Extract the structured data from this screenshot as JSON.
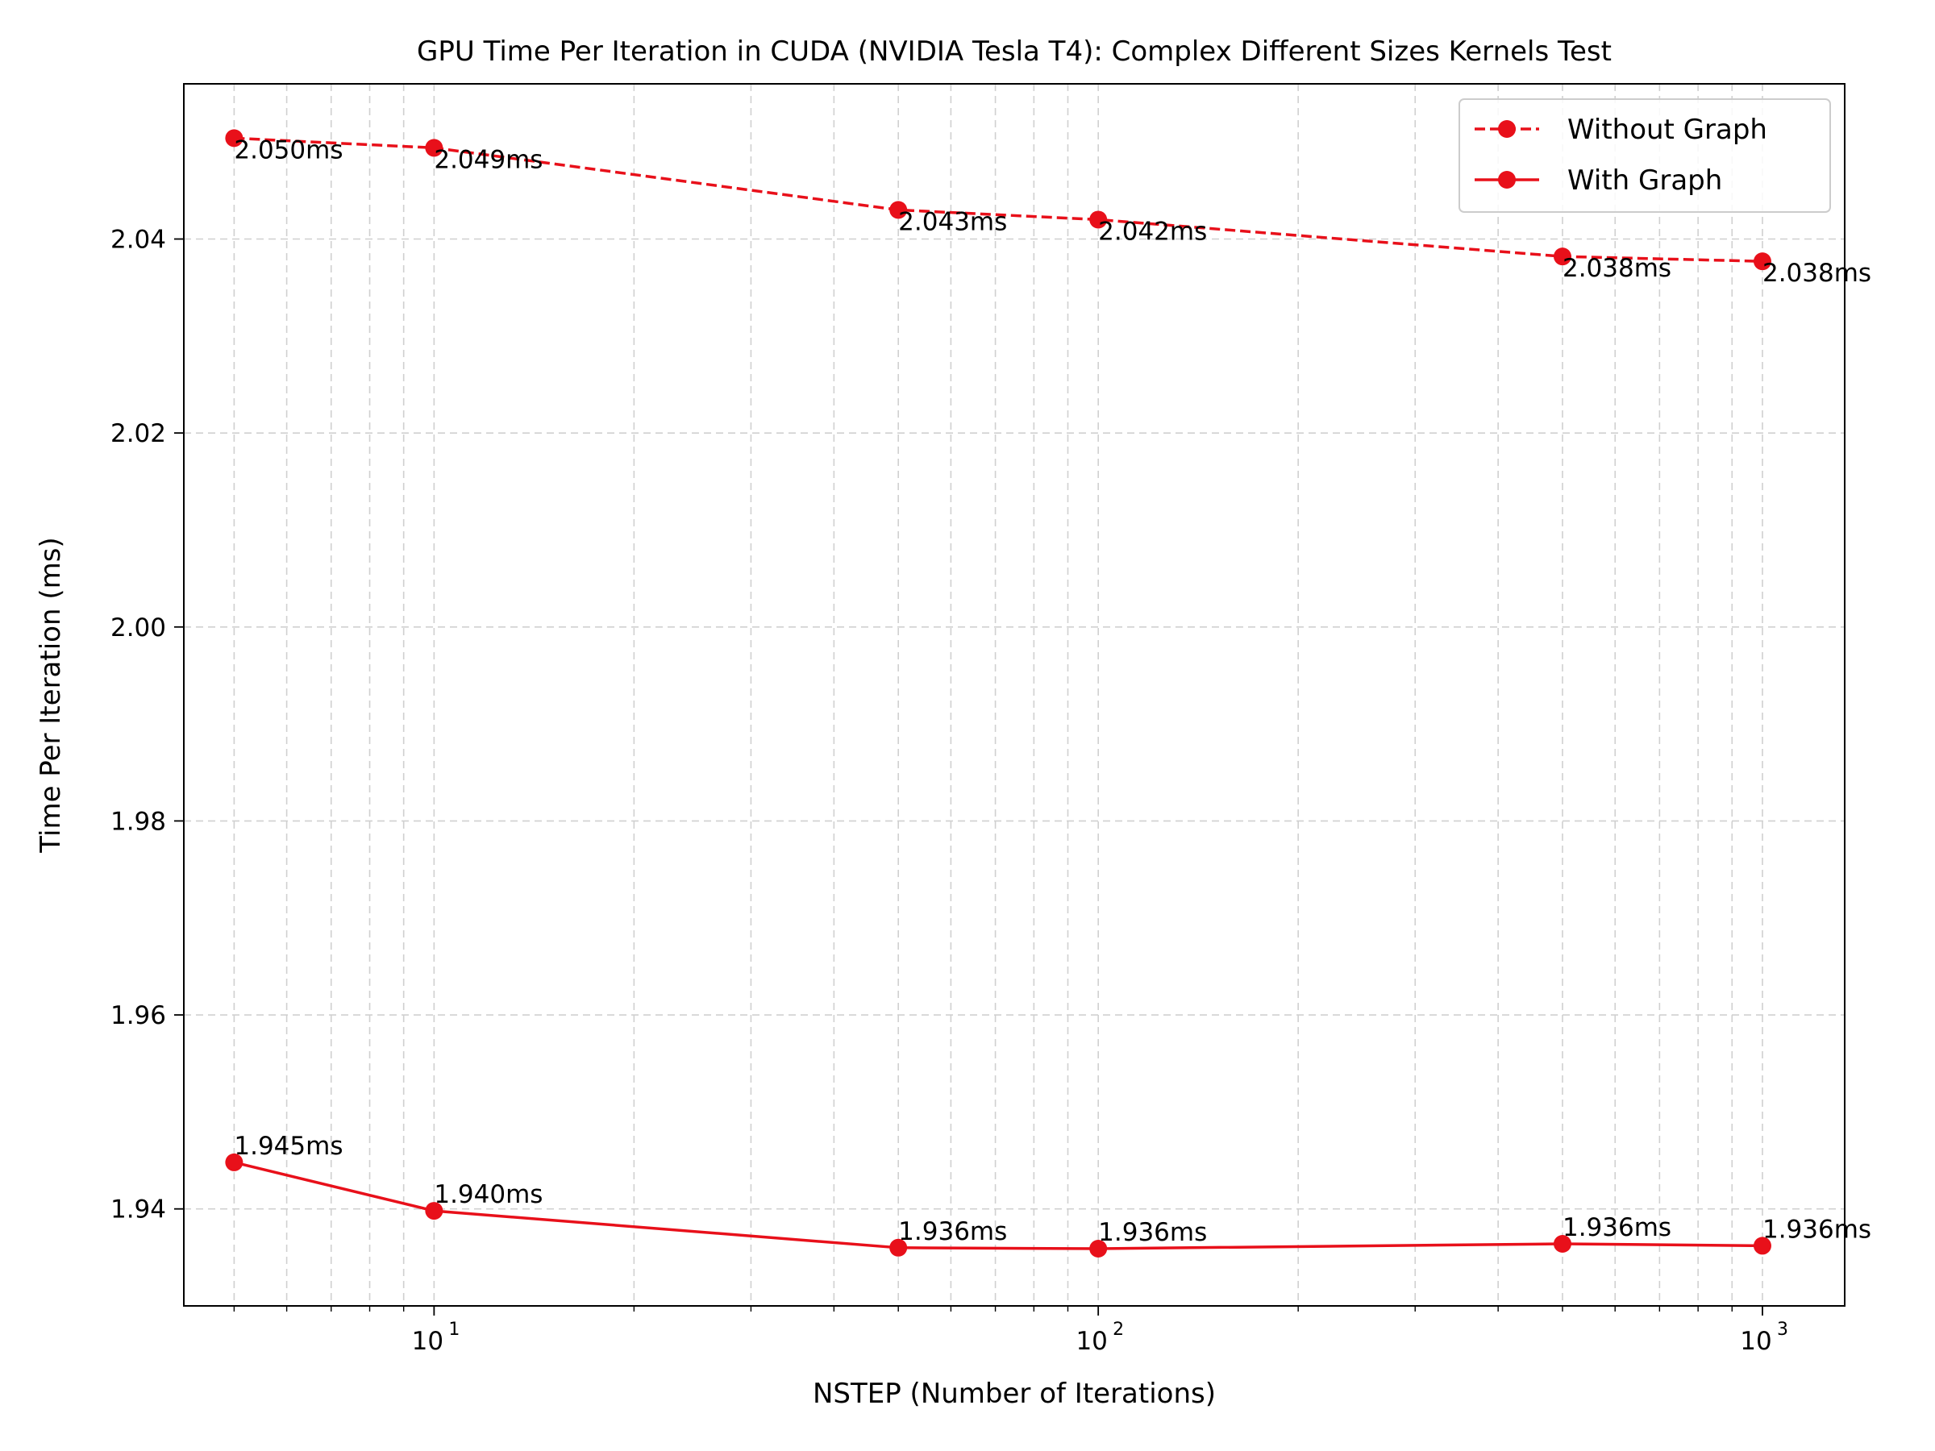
{
  "chart_data": {
    "type": "line",
    "title": "GPU Time Per Iteration in CUDA (NVIDIA Tesla T4): Complex Different Sizes Kernels Test",
    "xlabel": "NSTEP (Number of Iterations)",
    "ylabel": "Time Per Iteration (ms)",
    "xscale": "log",
    "xlim": [
      4.2,
      1330
    ],
    "ylim": [
      1.93,
      2.056
    ],
    "grid": true,
    "legend_position": "top-right",
    "x_ticks": [
      {
        "value": 10,
        "base": "10",
        "exp": "1"
      },
      {
        "value": 100,
        "base": "10",
        "exp": "2"
      },
      {
        "value": 1000,
        "base": "10",
        "exp": "3"
      }
    ],
    "y_ticks": [
      {
        "value": 1.94,
        "label": "1.94"
      },
      {
        "value": 1.96,
        "label": "1.96"
      },
      {
        "value": 1.98,
        "label": "1.98"
      },
      {
        "value": 2.0,
        "label": "2.00"
      },
      {
        "value": 2.02,
        "label": "2.02"
      },
      {
        "value": 2.04,
        "label": "2.04"
      }
    ],
    "x": [
      5,
      10,
      50,
      100,
      500,
      1000
    ],
    "series": [
      {
        "name": "Without Graph",
        "style": "dashed",
        "color": "#e8101a",
        "values": [
          2.0504,
          2.0494,
          2.043,
          2.042,
          2.0382,
          2.0377
        ],
        "labels": [
          "2.050ms",
          "2.049ms",
          "2.043ms",
          "2.042ms",
          "2.038ms",
          "2.038ms"
        ],
        "label_placement": "below"
      },
      {
        "name": "With Graph",
        "style": "solid",
        "color": "#e8101a",
        "values": [
          1.9448,
          1.9398,
          1.936,
          1.9359,
          1.9364,
          1.9362
        ],
        "labels": [
          "1.945ms",
          "1.940ms",
          "1.936ms",
          "1.936ms",
          "1.936ms",
          "1.936ms"
        ],
        "label_placement": "above"
      }
    ]
  }
}
